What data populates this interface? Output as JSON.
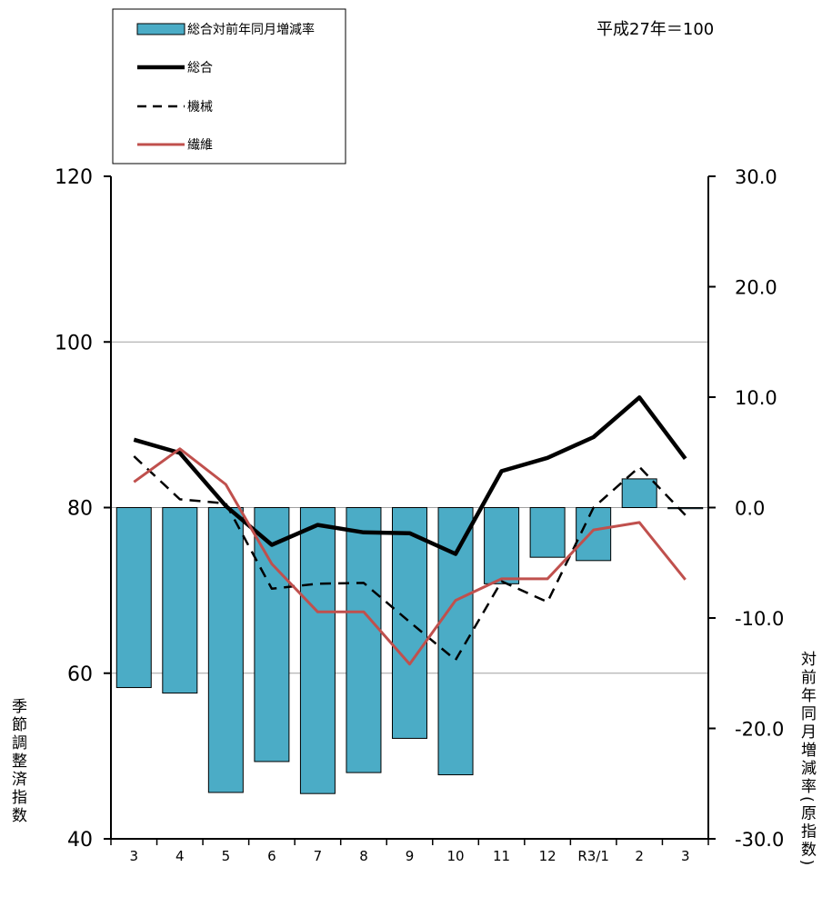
{
  "chart_data": {
    "type": "bar+line",
    "unit_note": "平成27年＝100",
    "categories": [
      "3",
      "4",
      "5",
      "6",
      "7",
      "8",
      "9",
      "10",
      "11",
      "12",
      "R3/1",
      "2",
      "3"
    ],
    "y_left": {
      "label": "季節調整済指数",
      "ticks": [
        "40",
        "60",
        "80",
        "100",
        "120"
      ],
      "range": [
        40,
        120
      ]
    },
    "y_right": {
      "label": "対前年同月増減率(原指数)",
      "ticks": [
        "-30.0",
        "-20.0",
        "-10.0",
        "0.0",
        "10.0",
        "20.0",
        "30.0"
      ],
      "range": [
        -30,
        30
      ]
    },
    "grid": "horizontal lines at 60 and 100 (left axis)",
    "legend_position": "top-left",
    "bar_series": {
      "name": "総合対前年同月増減率",
      "axis": "right",
      "color": "#4BACC6",
      "values": [
        -16.3,
        -16.8,
        -25.8,
        -23.0,
        -25.9,
        -24.0,
        -20.9,
        -24.2,
        -6.9,
        -4.5,
        -4.8,
        2.6,
        -0.1
      ]
    },
    "line_series": [
      {
        "name": "総合",
        "axis": "left",
        "style": "solid-thick",
        "color": "#000000",
        "values": [
          88.2,
          86.6,
          80.2,
          75.5,
          77.9,
          77.0,
          76.9,
          74.4,
          84.4,
          86.0,
          88.5,
          93.3,
          85.9
        ]
      },
      {
        "name": "機械",
        "axis": "left",
        "style": "dashed",
        "color": "#000000",
        "values": [
          86.2,
          81.0,
          80.5,
          70.2,
          70.8,
          70.9,
          66.2,
          61.6,
          71.1,
          68.6,
          80.0,
          84.9,
          79.1
        ]
      },
      {
        "name": "繊維",
        "axis": "left",
        "style": "solid",
        "color": "#C0504D",
        "values": [
          83.1,
          87.1,
          82.8,
          73.2,
          67.4,
          67.4,
          61.1,
          68.8,
          71.4,
          71.4,
          77.3,
          78.2,
          71.3
        ]
      }
    ]
  }
}
